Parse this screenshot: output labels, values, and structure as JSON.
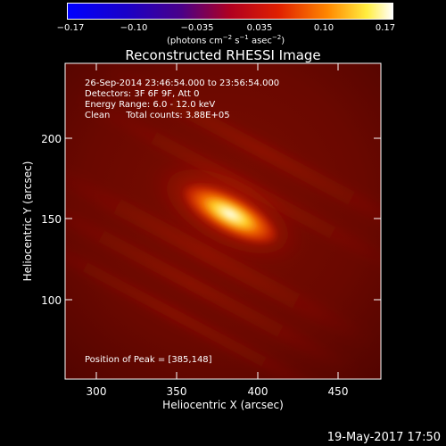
{
  "colorbar": {
    "tick_labels": [
      "−0.17",
      "−0.10",
      "−0.035",
      "0.035",
      "0.10",
      "0.17"
    ],
    "units_prefix": "(photons cm",
    "units_exp1": "−2",
    "units_mid": " s",
    "units_exp2": "−1",
    "units_mid2": " asec",
    "units_exp3": "−2",
    "units_suffix": ")"
  },
  "title": "Reconstructed RHESSI Image",
  "info": {
    "time_range": "26-Sep-2014 23:46:54.000 to 23:56:54.000",
    "detectors": "Detectors: 3F 6F 9F, Att 0",
    "energy_range": "Energy Range: 6.0 - 12.0 keV",
    "clean_label": "Clean",
    "total_counts": "Total counts: 3.88E+05"
  },
  "peak_text": "Position of Peak = [385,148]",
  "axes": {
    "xlabel": "Heliocentric X (arcsec)",
    "ylabel": "Heliocentric Y (arcsec)",
    "x_ticks": [
      "300",
      "350",
      "400",
      "450"
    ],
    "y_ticks": [
      "200",
      "150",
      "100"
    ]
  },
  "footer_date": "19-May-2017 17:50",
  "image": {
    "peak_x": 385,
    "peak_y": 148,
    "x_range": [
      280,
      475
    ],
    "y_range": [
      45,
      215
    ]
  }
}
